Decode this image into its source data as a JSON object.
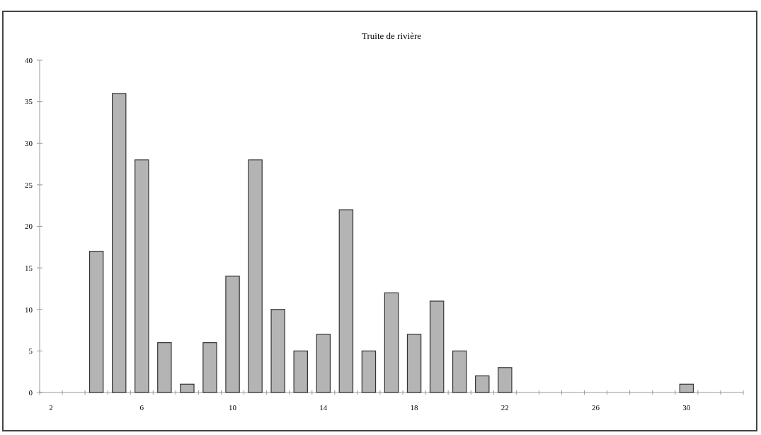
{
  "chart_data": {
    "type": "bar",
    "title": "Truite de rivière",
    "categories": [
      "2",
      null,
      null,
      null,
      "6",
      null,
      null,
      null,
      "10",
      null,
      null,
      null,
      "14",
      null,
      null,
      null,
      "18",
      null,
      null,
      null,
      "22",
      null,
      null,
      null,
      "26",
      null,
      null,
      null,
      "30",
      null,
      null
    ],
    "values": [
      0,
      0,
      17,
      36,
      28,
      6,
      1,
      6,
      14,
      28,
      10,
      5,
      7,
      22,
      5,
      12,
      7,
      11,
      5,
      2,
      3,
      0,
      0,
      0,
      0,
      0,
      0,
      0,
      1,
      0,
      0
    ],
    "color": "#b4b4b4",
    "ylim": [
      0,
      40
    ],
    "yticks": [
      0,
      5,
      10,
      15,
      20,
      25,
      30,
      35,
      40
    ],
    "grid": false
  }
}
